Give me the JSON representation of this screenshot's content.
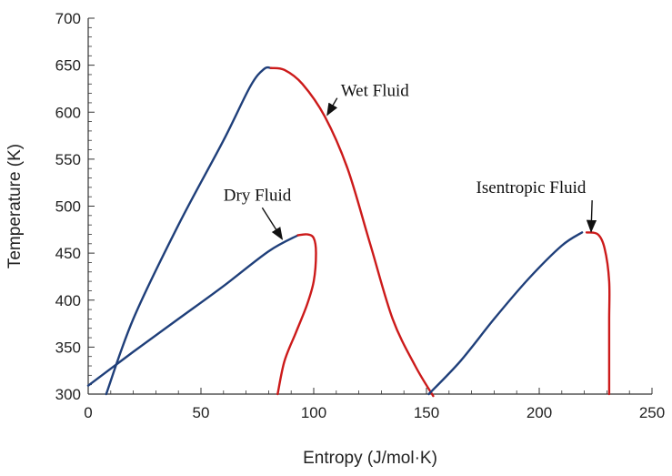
{
  "chart_data": {
    "type": "line",
    "xlabel": "Entropy (J/mol·K)",
    "ylabel": "Temperature (K)",
    "xlim": [
      0,
      250
    ],
    "ylim": [
      300,
      700
    ],
    "x_ticks": [
      "0",
      "50",
      "100",
      "150",
      "200",
      "250"
    ],
    "y_ticks": [
      "300",
      "350",
      "400",
      "450",
      "500",
      "550",
      "600",
      "650",
      "700"
    ],
    "grid": false,
    "legend": "none",
    "colors": {
      "liquid": "#1f3f7a",
      "vapor": "#cc1a1a"
    },
    "series": [
      {
        "group": "wet",
        "phase": "liquid",
        "points": [
          [
            8,
            300
          ],
          [
            20,
            380
          ],
          [
            40,
            480
          ],
          [
            60,
            570
          ],
          [
            72,
            628
          ],
          [
            78,
            646
          ],
          [
            81,
            647
          ]
        ]
      },
      {
        "group": "wet",
        "phase": "vapor",
        "points": [
          [
            81,
            647
          ],
          [
            87,
            645
          ],
          [
            95,
            630
          ],
          [
            105,
            595
          ],
          [
            115,
            540
          ],
          [
            125,
            460
          ],
          [
            135,
            380
          ],
          [
            145,
            330
          ],
          [
            153,
            298
          ]
        ]
      },
      {
        "group": "dry",
        "phase": "liquid",
        "points": [
          [
            0,
            309
          ],
          [
            20,
            345
          ],
          [
            40,
            380
          ],
          [
            60,
            415
          ],
          [
            80,
            452
          ],
          [
            93,
            469
          ]
        ]
      },
      {
        "group": "dry",
        "phase": "vapor",
        "points": [
          [
            93,
            469
          ],
          [
            97,
            470
          ],
          [
            100,
            466
          ],
          [
            101,
            450
          ],
          [
            100,
            420
          ],
          [
            97,
            395
          ],
          [
            92,
            365
          ],
          [
            87,
            335
          ],
          [
            84,
            300
          ]
        ]
      },
      {
        "group": "isentropic",
        "phase": "liquid",
        "points": [
          [
            151,
            300
          ],
          [
            165,
            335
          ],
          [
            180,
            380
          ],
          [
            195,
            422
          ],
          [
            210,
            458
          ],
          [
            219,
            472
          ]
        ]
      },
      {
        "group": "isentropic",
        "phase": "vapor",
        "points": [
          [
            221,
            472
          ],
          [
            226,
            470
          ],
          [
            229,
            455
          ],
          [
            231,
            420
          ],
          [
            231,
            380
          ],
          [
            231,
            340
          ],
          [
            231,
            300
          ]
        ]
      }
    ],
    "annotations": [
      {
        "text": "Wet Fluid",
        "x": 112,
        "y": 617,
        "arrow_to": [
          106,
          597
        ]
      },
      {
        "text": "Dry Fluid",
        "x": 60,
        "y": 506,
        "arrow_to": [
          86,
          465
        ]
      },
      {
        "text": "Isentropic Fluid",
        "x": 172,
        "y": 514,
        "arrow_to": [
          223,
          473
        ]
      }
    ]
  }
}
